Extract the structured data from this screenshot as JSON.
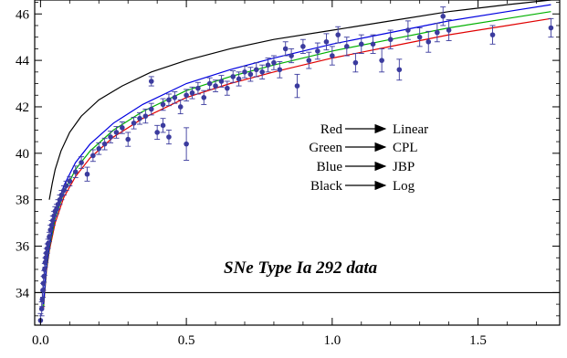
{
  "chart_data": {
    "type": "scatter",
    "title": "",
    "xlabel": "",
    "ylabel": "",
    "xlim": [
      -0.02,
      1.78
    ],
    "ylim": [
      32.6,
      46.6
    ],
    "x_ticks": [
      0.0,
      0.5,
      1.0,
      1.5
    ],
    "x_tick_labels": [
      "0.0",
      "0.5",
      "1.0",
      "1.5"
    ],
    "y_ticks": [
      34,
      36,
      38,
      40,
      42,
      44,
      46
    ],
    "y_tick_labels": [
      "34",
      "36",
      "38",
      "40",
      "42",
      "44",
      "46"
    ],
    "annotation": "SNe Type Ia 292 data",
    "reference_line_y": 34,
    "legend": [
      {
        "color_name": "Red",
        "model": "Linear",
        "color": "#e00000"
      },
      {
        "color_name": "Green",
        "model": "CPL",
        "color": "#00b000"
      },
      {
        "color_name": "Blue",
        "model": "JBP",
        "color": "#0000e0"
      },
      {
        "color_name": "Black",
        "model": "Log",
        "color": "#000000"
      }
    ],
    "series": [
      {
        "name": "Linear",
        "color": "#e00000",
        "x": [
          0.01,
          0.02,
          0.03,
          0.05,
          0.08,
          0.12,
          0.17,
          0.25,
          0.35,
          0.5,
          0.65,
          0.8,
          1.0,
          1.2,
          1.4,
          1.6,
          1.75
        ],
        "y": [
          33.3,
          34.9,
          35.8,
          37.0,
          38.1,
          39.0,
          39.8,
          40.7,
          41.5,
          42.4,
          43.0,
          43.5,
          44.1,
          44.6,
          45.1,
          45.5,
          45.8
        ]
      },
      {
        "name": "CPL",
        "color": "#00b000",
        "x": [
          0.01,
          0.02,
          0.03,
          0.05,
          0.08,
          0.12,
          0.17,
          0.25,
          0.35,
          0.5,
          0.65,
          0.8,
          1.0,
          1.2,
          1.4,
          1.6,
          1.75
        ],
        "y": [
          33.4,
          35.0,
          35.9,
          37.2,
          38.3,
          39.3,
          40.1,
          41.0,
          41.8,
          42.7,
          43.3,
          43.8,
          44.4,
          44.9,
          45.4,
          45.8,
          46.1
        ]
      },
      {
        "name": "JBP",
        "color": "#0000e0",
        "x": [
          0.01,
          0.02,
          0.03,
          0.05,
          0.08,
          0.12,
          0.17,
          0.25,
          0.35,
          0.5,
          0.65,
          0.8,
          1.0,
          1.2,
          1.4,
          1.6,
          1.75
        ],
        "y": [
          33.5,
          35.1,
          36.0,
          37.4,
          38.6,
          39.6,
          40.4,
          41.3,
          42.1,
          43.0,
          43.6,
          44.1,
          44.7,
          45.2,
          45.7,
          46.1,
          46.4
        ]
      },
      {
        "name": "Log",
        "color": "#000000",
        "x": [
          0.03,
          0.04,
          0.05,
          0.07,
          0.1,
          0.14,
          0.2,
          0.28,
          0.38,
          0.5,
          0.65,
          0.8,
          1.0,
          1.2,
          1.4,
          1.6,
          1.75
        ],
        "y": [
          38.0,
          38.7,
          39.3,
          40.1,
          40.9,
          41.6,
          42.3,
          42.9,
          43.5,
          44.0,
          44.5,
          44.9,
          45.3,
          45.7,
          46.1,
          46.4,
          46.6
        ]
      },
      {
        "name": "SNe Ia data",
        "color": "#3b3b9e",
        "points": [
          [
            0.0,
            32.8,
            0.3
          ],
          [
            0.004,
            33.3,
            0.3
          ],
          [
            0.006,
            33.7,
            0.3
          ],
          [
            0.008,
            34.1,
            0.3
          ],
          [
            0.01,
            34.4,
            0.3
          ],
          [
            0.012,
            34.7,
            0.25
          ],
          [
            0.014,
            35.0,
            0.25
          ],
          [
            0.016,
            35.3,
            0.2
          ],
          [
            0.018,
            35.5,
            0.2
          ],
          [
            0.02,
            35.7,
            0.2
          ],
          [
            0.023,
            35.9,
            0.2
          ],
          [
            0.026,
            36.1,
            0.2
          ],
          [
            0.03,
            36.4,
            0.2
          ],
          [
            0.034,
            36.7,
            0.2
          ],
          [
            0.038,
            36.9,
            0.2
          ],
          [
            0.042,
            37.1,
            0.2
          ],
          [
            0.046,
            37.3,
            0.2
          ],
          [
            0.05,
            37.5,
            0.2
          ],
          [
            0.055,
            37.6,
            0.2
          ],
          [
            0.06,
            37.8,
            0.2
          ],
          [
            0.066,
            38.0,
            0.2
          ],
          [
            0.072,
            38.2,
            0.2
          ],
          [
            0.08,
            38.4,
            0.2
          ],
          [
            0.088,
            38.6,
            0.2
          ],
          [
            0.1,
            38.8,
            0.2
          ],
          [
            0.12,
            39.2,
            0.25
          ],
          [
            0.14,
            39.6,
            0.25
          ],
          [
            0.16,
            39.1,
            0.3
          ],
          [
            0.18,
            39.9,
            0.25
          ],
          [
            0.2,
            40.2,
            0.25
          ],
          [
            0.22,
            40.4,
            0.25
          ],
          [
            0.24,
            40.7,
            0.25
          ],
          [
            0.26,
            40.9,
            0.25
          ],
          [
            0.28,
            41.1,
            0.25
          ],
          [
            0.3,
            40.6,
            0.3
          ],
          [
            0.32,
            41.3,
            0.25
          ],
          [
            0.34,
            41.5,
            0.25
          ],
          [
            0.36,
            41.6,
            0.3
          ],
          [
            0.38,
            43.1,
            0.2
          ],
          [
            0.38,
            41.9,
            0.25
          ],
          [
            0.4,
            40.9,
            0.3
          ],
          [
            0.42,
            41.2,
            0.3
          ],
          [
            0.42,
            42.1,
            0.25
          ],
          [
            0.44,
            40.7,
            0.3
          ],
          [
            0.44,
            42.3,
            0.25
          ],
          [
            0.46,
            42.4,
            0.25
          ],
          [
            0.48,
            42.0,
            0.3
          ],
          [
            0.5,
            42.5,
            0.25
          ],
          [
            0.5,
            40.4,
            0.7
          ],
          [
            0.52,
            42.6,
            0.25
          ],
          [
            0.54,
            42.8,
            0.25
          ],
          [
            0.56,
            42.4,
            0.3
          ],
          [
            0.58,
            43.0,
            0.25
          ],
          [
            0.6,
            42.9,
            0.25
          ],
          [
            0.62,
            43.1,
            0.25
          ],
          [
            0.64,
            42.8,
            0.3
          ],
          [
            0.66,
            43.3,
            0.25
          ],
          [
            0.68,
            43.2,
            0.3
          ],
          [
            0.7,
            43.5,
            0.25
          ],
          [
            0.72,
            43.4,
            0.3
          ],
          [
            0.74,
            43.6,
            0.3
          ],
          [
            0.76,
            43.5,
            0.3
          ],
          [
            0.78,
            43.8,
            0.3
          ],
          [
            0.8,
            43.9,
            0.3
          ],
          [
            0.82,
            43.6,
            0.35
          ],
          [
            0.84,
            44.5,
            0.3
          ],
          [
            0.86,
            44.2,
            0.3
          ],
          [
            0.88,
            42.9,
            0.5
          ],
          [
            0.9,
            44.6,
            0.3
          ],
          [
            0.92,
            44.0,
            0.35
          ],
          [
            0.95,
            44.4,
            0.35
          ],
          [
            0.98,
            44.8,
            0.35
          ],
          [
            1.0,
            44.2,
            0.4
          ],
          [
            1.02,
            45.1,
            0.35
          ],
          [
            1.05,
            44.6,
            0.4
          ],
          [
            1.08,
            43.9,
            0.4
          ],
          [
            1.1,
            44.7,
            0.4
          ],
          [
            1.14,
            44.7,
            0.4
          ],
          [
            1.17,
            44.0,
            0.5
          ],
          [
            1.2,
            44.9,
            0.4
          ],
          [
            1.23,
            43.6,
            0.45
          ],
          [
            1.26,
            45.3,
            0.4
          ],
          [
            1.3,
            45.0,
            0.4
          ],
          [
            1.33,
            44.8,
            0.45
          ],
          [
            1.36,
            45.2,
            0.4
          ],
          [
            1.38,
            45.9,
            0.4
          ],
          [
            1.4,
            45.3,
            0.45
          ],
          [
            1.55,
            45.1,
            0.4
          ],
          [
            1.75,
            45.4,
            0.4
          ]
        ]
      }
    ]
  }
}
